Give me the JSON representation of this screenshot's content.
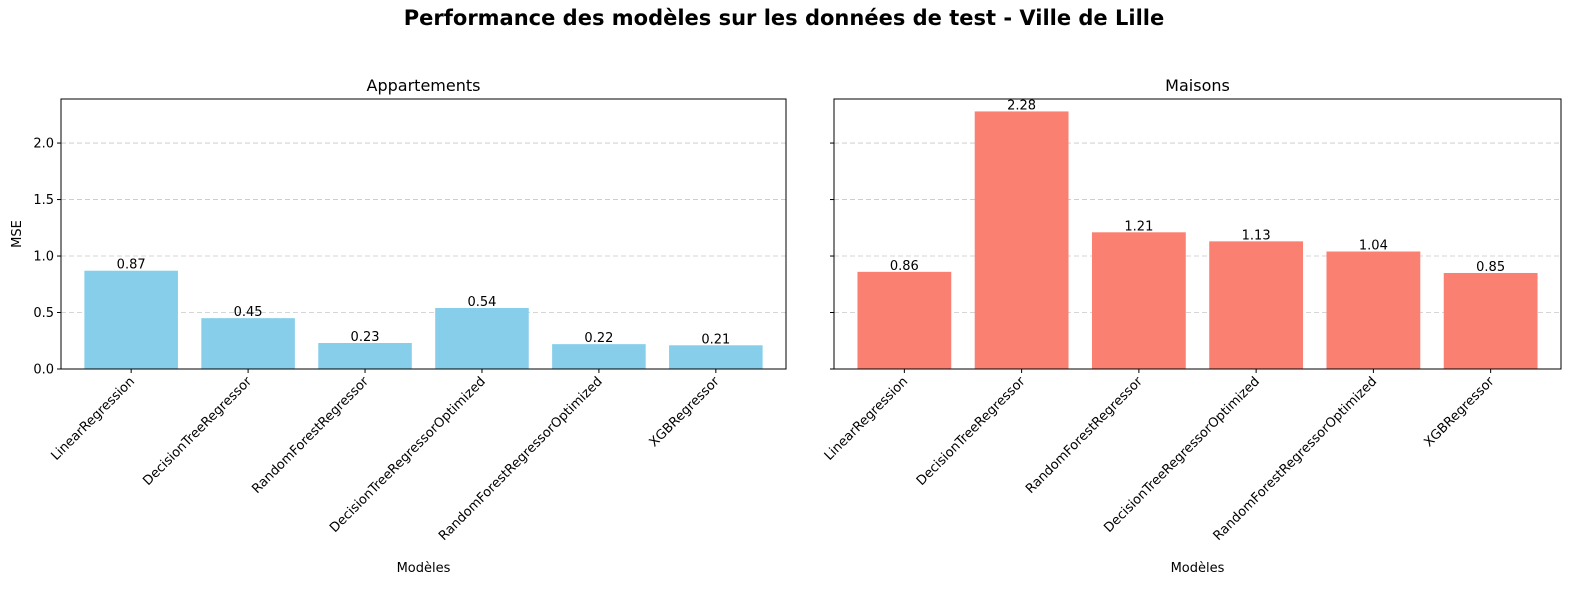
{
  "figure": {
    "suptitle": "Performance des modèles sur les données de test - Ville de Lille"
  },
  "chart_data": [
    {
      "type": "bar",
      "title": "Appartements",
      "xlabel": "Modèles",
      "ylabel": "MSE",
      "categories": [
        "LinearRegression",
        "DecisionTreeRegressor",
        "RandomForestRegressor",
        "DecisionTreeRegressorOptimized",
        "RandomForestRegressorOptimized",
        "XGBRegressor"
      ],
      "values": [
        0.87,
        0.45,
        0.23,
        0.54,
        0.22,
        0.21
      ],
      "value_labels": [
        "0.87",
        "0.45",
        "0.23",
        "0.54",
        "0.22",
        "0.21"
      ],
      "ylim": [
        0,
        2.39
      ],
      "yticks": [
        0.0,
        0.5,
        1.0,
        1.5,
        2.0
      ],
      "ytick_labels": [
        "0.0",
        "0.5",
        "1.0",
        "1.5",
        "2.0"
      ],
      "bar_color": "#87ceeb",
      "grid": "y-dashed"
    },
    {
      "type": "bar",
      "title": "Maisons",
      "xlabel": "Modèles",
      "ylabel": "",
      "categories": [
        "LinearRegression",
        "DecisionTreeRegressor",
        "RandomForestRegressor",
        "DecisionTreeRegressorOptimized",
        "RandomForestRegressorOptimized",
        "XGBRegressor"
      ],
      "values": [
        0.86,
        2.28,
        1.21,
        1.13,
        1.04,
        0.85
      ],
      "value_labels": [
        "0.86",
        "2.28",
        "1.21",
        "1.13",
        "1.04",
        "0.85"
      ],
      "ylim": [
        0,
        2.39
      ],
      "yticks": [
        0.0,
        0.5,
        1.0,
        1.5,
        2.0
      ],
      "ytick_labels": [],
      "shared_y": true,
      "bar_color": "#fa8072",
      "grid": "y-dashed"
    }
  ]
}
